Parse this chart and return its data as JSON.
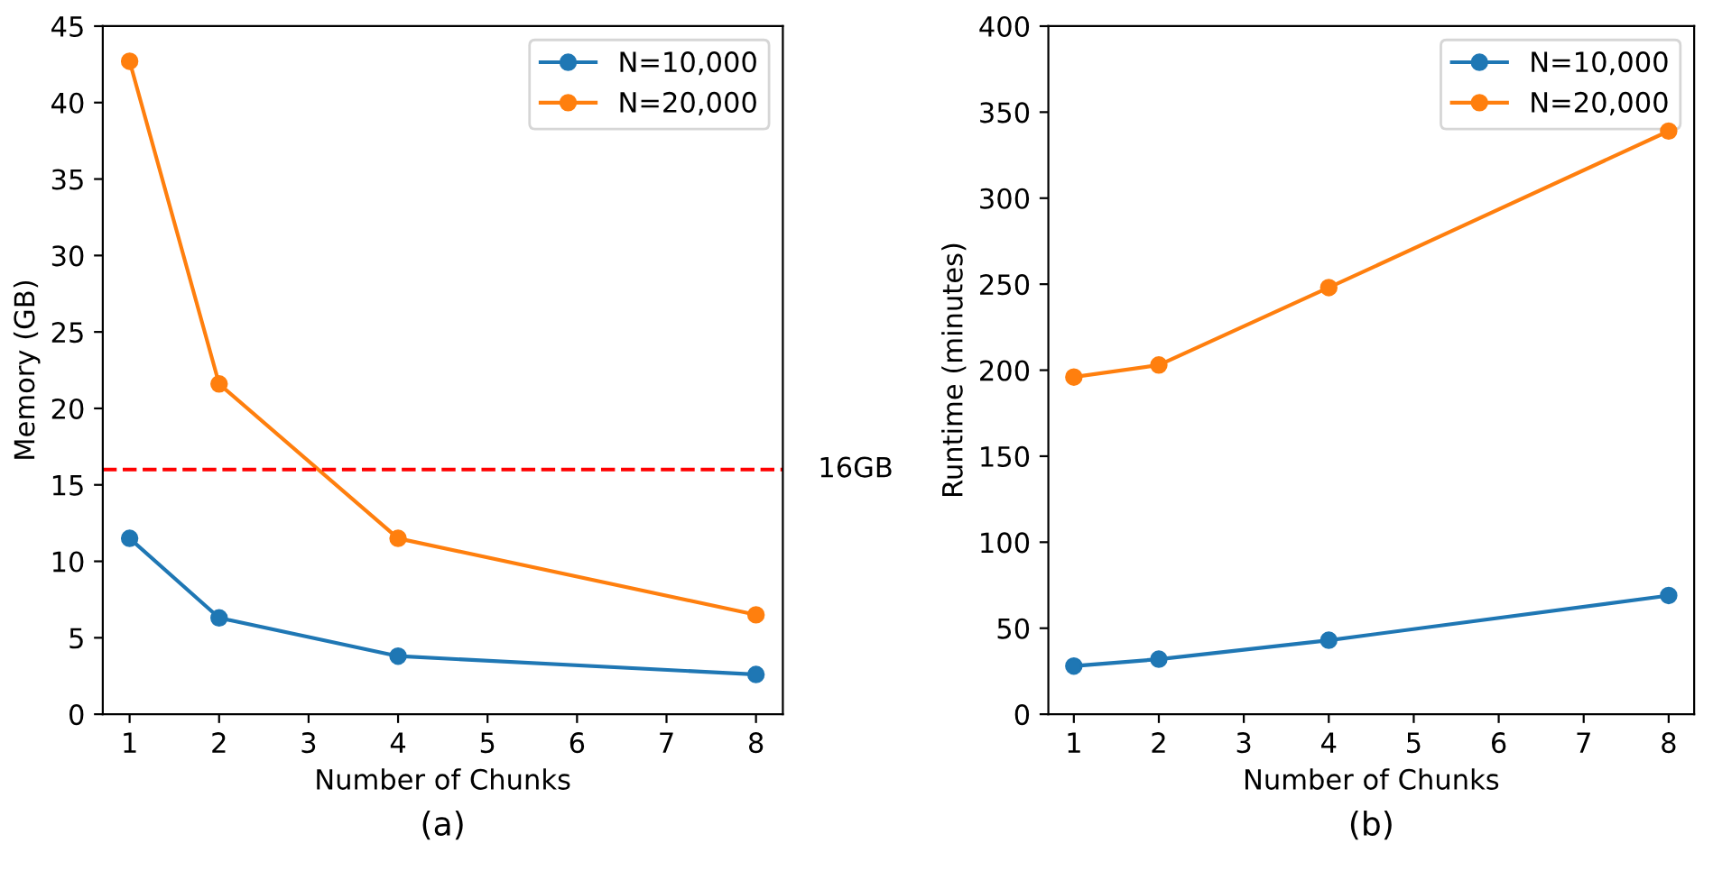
{
  "chart_data": [
    {
      "type": "line",
      "x": [
        1,
        2,
        4,
        8
      ],
      "xlabel": "Number of Chunks",
      "ylabel": "Memory (GB)",
      "xlim": [
        0.7,
        8.3
      ],
      "ylim": [
        0,
        45
      ],
      "xticks": [
        1,
        2,
        3,
        4,
        5,
        6,
        7,
        8
      ],
      "yticks": [
        0,
        5,
        10,
        15,
        20,
        25,
        30,
        35,
        40,
        45
      ],
      "marker": "circle",
      "line_style": "solid",
      "grid": false,
      "legend": "top right",
      "series": [
        {
          "name": "N=10,000",
          "color": "#1f77b4",
          "values": [
            11.5,
            6.3,
            3.8,
            2.6
          ]
        },
        {
          "name": "N=20,000",
          "color": "#ff7f0e",
          "values": [
            42.7,
            21.6,
            11.5,
            6.5
          ]
        }
      ],
      "ref_lines": [
        {
          "axis": "y",
          "value": 16,
          "label": "16GB",
          "color": "#ff0000",
          "line_style": "dashed"
        }
      ],
      "annotations": [
        "(a)"
      ]
    },
    {
      "type": "line",
      "x": [
        1,
        2,
        4,
        8
      ],
      "xlabel": "Number of Chunks",
      "ylabel": "Runtime (minutes)",
      "xlim": [
        0.7,
        8.3
      ],
      "ylim": [
        0,
        400
      ],
      "xticks": [
        1,
        2,
        3,
        4,
        5,
        6,
        7,
        8
      ],
      "yticks": [
        0,
        50,
        100,
        150,
        200,
        250,
        300,
        350,
        400
      ],
      "marker": "circle",
      "line_style": "solid",
      "grid": false,
      "legend": "top right",
      "series": [
        {
          "name": "N=10,000",
          "color": "#1f77b4",
          "values": [
            28,
            32,
            43,
            69
          ]
        },
        {
          "name": "N=20,000",
          "color": "#ff7f0e",
          "values": [
            196,
            203,
            248,
            339
          ]
        }
      ],
      "annotations": [
        "(b)"
      ]
    }
  ]
}
